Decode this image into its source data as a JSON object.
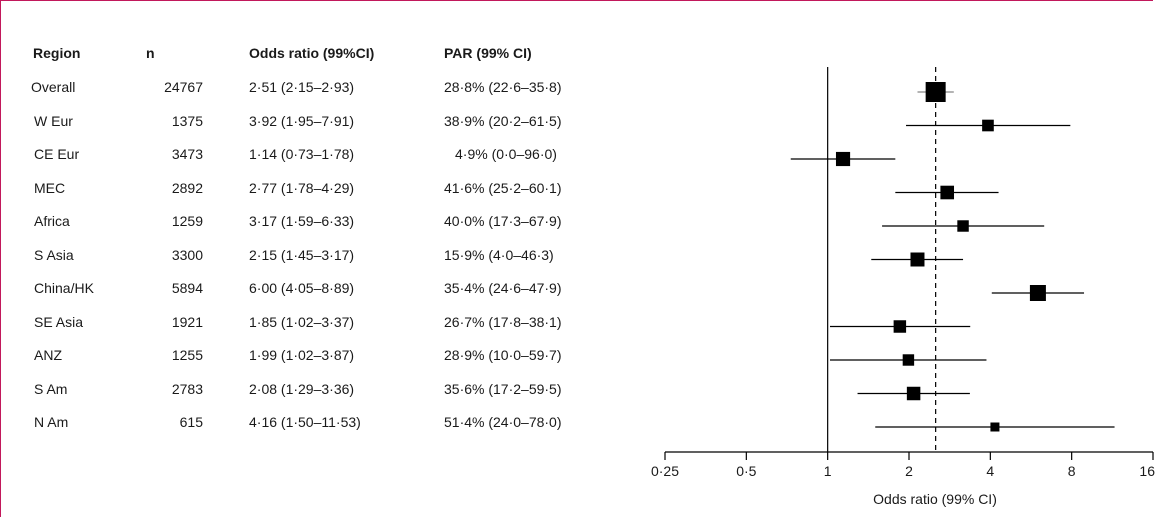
{
  "table": {
    "headers": {
      "region": "Region",
      "n": "n",
      "or": "Odds ratio (99%CI)",
      "par": "PAR  (99% CI)"
    },
    "rows": [
      {
        "region": "Overall",
        "n": "24767",
        "or_text": "2·51 (2·15–2·93)",
        "par": "28·8% (22·6–35·8)"
      },
      {
        "region": "W Eur",
        "n": "1375",
        "or_text": "3·92 (1·95–7·91)",
        "par": "38·9% (20·2–61·5)"
      },
      {
        "region": "CE Eur",
        "n": "3473",
        "or_text": "1·14 (0·73–1·78)",
        "par": "4·9% (0·0–96·0)"
      },
      {
        "region": "MEC",
        "n": "2892",
        "or_text": "2·77 (1·78–4·29)",
        "par": "41·6% (25·2–60·1)"
      },
      {
        "region": "Africa",
        "n": "1259",
        "or_text": "3·17 (1·59–6·33)",
        "par": "40·0% (17·3–67·9)"
      },
      {
        "region": "S Asia",
        "n": "3300",
        "or_text": "2·15 (1·45–3·17)",
        "par": "15·9% (4·0–46·3)"
      },
      {
        "region": "China/HK",
        "n": "5894",
        "or_text": "6·00 (4·05–8·89)",
        "par": "35·4% (24·6–47·9)"
      },
      {
        "region": "SE Asia",
        "n": "1921",
        "or_text": "1·85 (1·02–3·37)",
        "par": "26·7% (17·8–38·1)"
      },
      {
        "region": "ANZ",
        "n": "1255",
        "or_text": "1·99 (1·02–3·87)",
        "par": "28·9% (10·0–59·7)"
      },
      {
        "region": "S Am",
        "n": "2783",
        "or_text": "2·08 (1·29–3·36)",
        "par": "35·6% (17·2–59·5)"
      },
      {
        "region": "N Am",
        "n": "615",
        "or_text": "4·16 (1·50–11·53)",
        "par": "51·4% (24·0–78·0)"
      }
    ]
  },
  "chart_data": {
    "type": "forest",
    "xlabel": "Odds ratio (99% CI)",
    "xscale": "log2",
    "xlim": [
      0.25,
      16
    ],
    "ticks": [
      {
        "value": 0.25,
        "label": "0·25"
      },
      {
        "value": 0.5,
        "label": "0·5"
      },
      {
        "value": 1,
        "label": "1"
      },
      {
        "value": 2,
        "label": "2"
      },
      {
        "value": 4,
        "label": "4"
      },
      {
        "value": 8,
        "label": "8"
      },
      {
        "value": 16,
        "label": "16"
      }
    ],
    "reference_line": 1,
    "overall_dashed_line": 2.51,
    "rows": [
      {
        "label": "Overall",
        "or": 2.51,
        "lo": 2.15,
        "hi": 2.93,
        "n": 24767
      },
      {
        "label": "W Eur",
        "or": 3.92,
        "lo": 1.95,
        "hi": 7.91,
        "n": 1375
      },
      {
        "label": "CE Eur",
        "or": 1.14,
        "lo": 0.73,
        "hi": 1.78,
        "n": 3473
      },
      {
        "label": "MEC",
        "or": 2.77,
        "lo": 1.78,
        "hi": 4.29,
        "n": 2892
      },
      {
        "label": "Africa",
        "or": 3.17,
        "lo": 1.59,
        "hi": 6.33,
        "n": 1259
      },
      {
        "label": "S Asia",
        "or": 2.15,
        "lo": 1.45,
        "hi": 3.17,
        "n": 3300
      },
      {
        "label": "China/HK",
        "or": 6.0,
        "lo": 4.05,
        "hi": 8.89,
        "n": 5894
      },
      {
        "label": "SE Asia",
        "or": 1.85,
        "lo": 1.02,
        "hi": 3.37,
        "n": 1921
      },
      {
        "label": "ANZ",
        "or": 1.99,
        "lo": 1.02,
        "hi": 3.87,
        "n": 1255
      },
      {
        "label": "S Am",
        "or": 2.08,
        "lo": 1.29,
        "hi": 3.36,
        "n": 2783
      },
      {
        "label": "N Am",
        "or": 4.16,
        "lo": 1.5,
        "hi": 11.53,
        "n": 615
      }
    ],
    "colors": {
      "marker": "#000000",
      "line": "#000000",
      "overall_ci": "#888888"
    }
  }
}
